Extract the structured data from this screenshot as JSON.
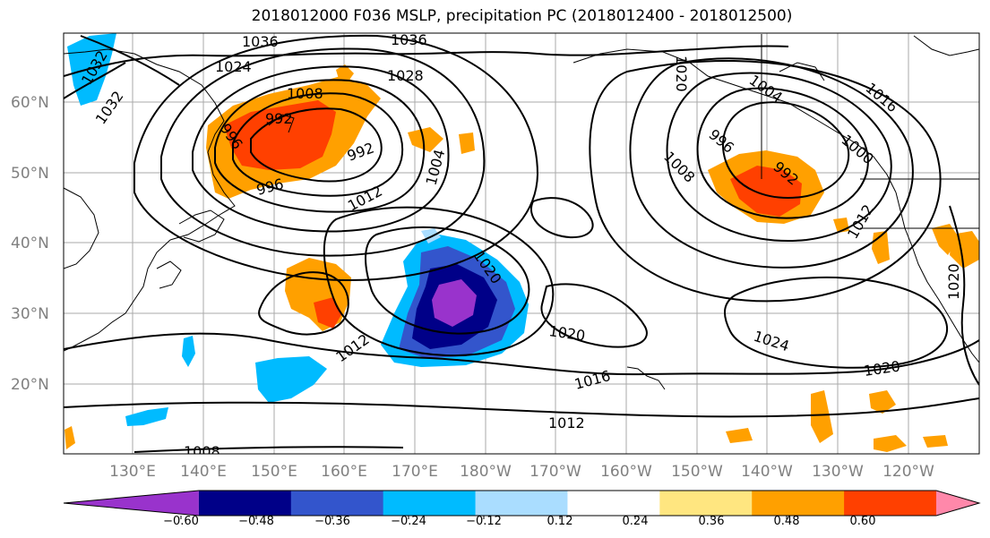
{
  "title": "2018012000 F036 MSLP, precipitation PC (2018012400 - 2018012500)",
  "lat_labels": [
    "60°N",
    "50°N",
    "40°N",
    "30°N",
    "20°N"
  ],
  "lon_labels": [
    "130°E",
    "140°E",
    "150°E",
    "160°E",
    "170°E",
    "180°W",
    "170°W",
    "160°W",
    "150°W",
    "140°W",
    "130°W",
    "120°W"
  ],
  "contour_labels": [
    "1036",
    "1036",
    "1024",
    "1028",
    "1032",
    "1032",
    "1020",
    "1008",
    "992",
    "996",
    "992",
    "996",
    "1004",
    "1012",
    "1020",
    "1012",
    "1020",
    "1016",
    "1012",
    "1008",
    "996",
    "1008",
    "992",
    "1000",
    "1016",
    "1024",
    "1020",
    "1004",
    "1012",
    "1020"
  ],
  "colorbar": {
    "colors": [
      "#9933cc",
      "#000088",
      "#3355cc",
      "#00bbff",
      "#aaddff",
      "#ffffff",
      "#ffe680",
      "#ffa000",
      "#ff4000",
      "#b22222",
      "#ff88aa"
    ],
    "tick_labels": [
      "−0.60",
      "−0.48",
      "−0.36",
      "−0.24",
      "−0.12",
      "0.12",
      "0.24",
      "0.36",
      "0.48",
      "0.60"
    ]
  }
}
